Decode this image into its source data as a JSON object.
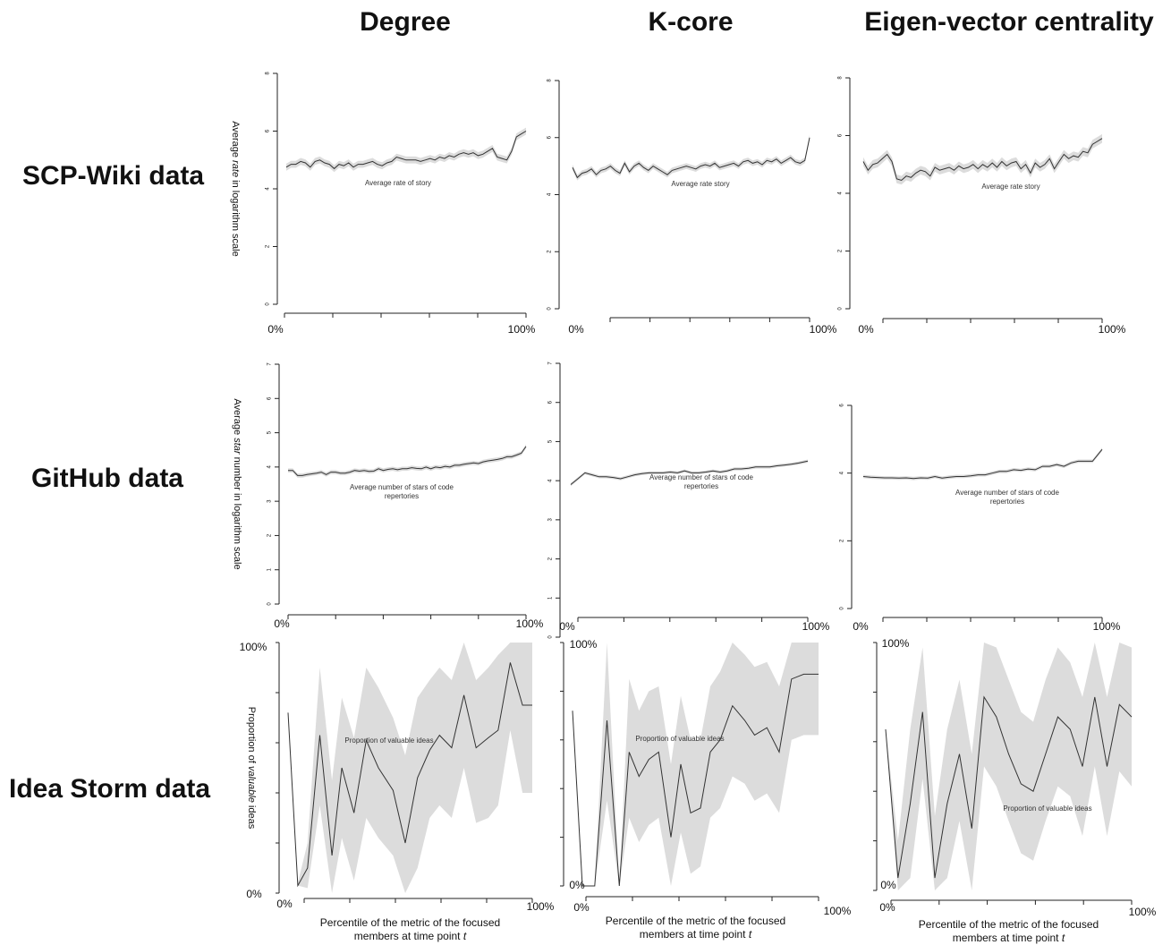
{
  "column_titles": [
    "Degree",
    "K-core",
    "Eigen-vector centrality"
  ],
  "row_titles": [
    "SCP-Wiki data",
    "GitHub data",
    "Idea Storm data"
  ],
  "chart_data": [
    {
      "type": "line",
      "row": 0,
      "col": 0,
      "ylabel": "Average rate in logarithm scale",
      "annotation": "Average rate of story",
      "ylim": [
        0,
        8
      ],
      "yticks": [
        0,
        2,
        4,
        6,
        8
      ],
      "x_start": "0%",
      "x_end": "100%",
      "band": true,
      "band_width": 0.12,
      "x": [
        0,
        2,
        4,
        6,
        8,
        10,
        12,
        14,
        16,
        18,
        20,
        22,
        24,
        26,
        28,
        30,
        32,
        34,
        36,
        38,
        40,
        42,
        44,
        46,
        48,
        50,
        52,
        54,
        56,
        58,
        60,
        62,
        64,
        66,
        68,
        70,
        72,
        74,
        76,
        78,
        80,
        82,
        84,
        86,
        88,
        90,
        92,
        94,
        96,
        98,
        100
      ],
      "values": [
        4.75,
        4.85,
        4.85,
        4.95,
        4.9,
        4.75,
        4.95,
        5.0,
        4.9,
        4.85,
        4.7,
        4.85,
        4.8,
        4.9,
        4.75,
        4.85,
        4.85,
        4.9,
        4.95,
        4.85,
        4.8,
        4.9,
        4.95,
        5.1,
        5.05,
        5.0,
        5.0,
        5.0,
        4.95,
        5.0,
        5.05,
        5.0,
        5.1,
        5.05,
        5.15,
        5.1,
        5.2,
        5.25,
        5.2,
        5.25,
        5.15,
        5.2,
        5.3,
        5.4,
        5.1,
        5.05,
        5.0,
        5.3,
        5.8,
        5.9,
        6.0
      ]
    },
    {
      "type": "line",
      "row": 0,
      "col": 1,
      "ylabel": "",
      "annotation": "Average rate story",
      "ylim": [
        0,
        8
      ],
      "yticks": [
        0,
        2,
        4,
        6,
        8
      ],
      "x_start": "0%",
      "x_end": "100%",
      "band": true,
      "band_width": 0.1,
      "x": [
        0,
        2,
        4,
        6,
        8,
        10,
        12,
        14,
        16,
        18,
        20,
        22,
        24,
        26,
        28,
        30,
        32,
        34,
        36,
        38,
        40,
        42,
        44,
        46,
        48,
        50,
        52,
        54,
        56,
        58,
        60,
        62,
        64,
        66,
        68,
        70,
        72,
        74,
        76,
        78,
        80,
        82,
        84,
        86,
        88,
        90,
        92,
        94,
        96,
        98,
        100
      ],
      "values": [
        4.95,
        4.6,
        4.75,
        4.8,
        4.9,
        4.7,
        4.85,
        4.9,
        5.0,
        4.85,
        4.75,
        5.1,
        4.8,
        5.0,
        5.1,
        4.95,
        4.85,
        5.0,
        4.9,
        4.8,
        4.7,
        4.85,
        4.9,
        4.95,
        5.0,
        4.95,
        4.9,
        5.0,
        5.05,
        5.0,
        5.1,
        4.95,
        5.0,
        5.05,
        5.1,
        5.0,
        5.15,
        5.2,
        5.1,
        5.15,
        5.05,
        5.2,
        5.15,
        5.25,
        5.1,
        5.2,
        5.3,
        5.15,
        5.1,
        5.2,
        6.0
      ]
    },
    {
      "type": "line",
      "row": 0,
      "col": 2,
      "ylabel": "",
      "annotation": "Average rate story",
      "ylim": [
        0,
        8
      ],
      "yticks": [
        0,
        2,
        4,
        6,
        8
      ],
      "x_start": "0%",
      "x_end": "100%",
      "band": true,
      "band_width": 0.15,
      "x": [
        0,
        2,
        4,
        6,
        8,
        10,
        12,
        14,
        16,
        18,
        20,
        22,
        24,
        26,
        28,
        30,
        32,
        34,
        36,
        38,
        40,
        42,
        44,
        46,
        48,
        50,
        52,
        54,
        56,
        58,
        60,
        62,
        64,
        66,
        68,
        70,
        72,
        74,
        76,
        78,
        80,
        82,
        84,
        86,
        88,
        90,
        92,
        94,
        96,
        98,
        100
      ],
      "values": [
        5.1,
        4.8,
        5.0,
        5.05,
        5.2,
        5.35,
        5.1,
        4.5,
        4.45,
        4.6,
        4.55,
        4.7,
        4.8,
        4.75,
        4.6,
        4.9,
        4.8,
        4.85,
        4.9,
        4.8,
        4.95,
        4.85,
        4.9,
        5.0,
        4.85,
        5.0,
        4.9,
        5.05,
        4.9,
        5.1,
        4.95,
        5.05,
        5.1,
        4.85,
        5.0,
        4.7,
        5.05,
        4.9,
        5.0,
        5.2,
        4.85,
        5.1,
        5.35,
        5.2,
        5.3,
        5.25,
        5.45,
        5.4,
        5.7,
        5.8,
        5.9
      ]
    },
    {
      "type": "line",
      "row": 1,
      "col": 0,
      "ylabel": "Average star number in logarithm scale",
      "annotation": "Average number of stars of code repertories",
      "ylim": [
        0,
        7
      ],
      "yticks": [
        0,
        1,
        2,
        3,
        4,
        5,
        6,
        7
      ],
      "x_start": "0%",
      "x_end": "100%",
      "band": true,
      "band_width": 0.06,
      "x": [
        0,
        2,
        4,
        6,
        8,
        10,
        12,
        14,
        16,
        18,
        20,
        22,
        24,
        26,
        28,
        30,
        32,
        34,
        36,
        38,
        40,
        42,
        44,
        46,
        48,
        50,
        52,
        54,
        56,
        58,
        60,
        62,
        64,
        66,
        68,
        70,
        72,
        74,
        76,
        78,
        80,
        82,
        84,
        86,
        88,
        90,
        92,
        94,
        96,
        98,
        100
      ],
      "values": [
        3.9,
        3.9,
        3.75,
        3.75,
        3.78,
        3.8,
        3.82,
        3.85,
        3.78,
        3.85,
        3.85,
        3.82,
        3.82,
        3.85,
        3.9,
        3.88,
        3.9,
        3.87,
        3.88,
        3.95,
        3.9,
        3.93,
        3.95,
        3.92,
        3.95,
        3.95,
        3.98,
        3.96,
        3.95,
        4.0,
        3.95,
        4.0,
        3.98,
        4.02,
        4.0,
        4.05,
        4.05,
        4.08,
        4.1,
        4.12,
        4.1,
        4.15,
        4.18,
        4.2,
        4.22,
        4.25,
        4.3,
        4.3,
        4.35,
        4.4,
        4.6
      ]
    },
    {
      "type": "line",
      "row": 1,
      "col": 1,
      "ylabel": "",
      "annotation": "Average number of stars of code repertories",
      "ylim": [
        0,
        7
      ],
      "yticks": [
        0,
        1,
        2,
        3,
        4,
        5,
        6,
        7
      ],
      "x_start": "0%",
      "x_end": "100%",
      "band": true,
      "band_width": 0.04,
      "x": [
        0,
        3,
        6,
        9,
        12,
        15,
        18,
        21,
        24,
        27,
        30,
        33,
        36,
        39,
        42,
        45,
        48,
        51,
        54,
        57,
        60,
        63,
        66,
        69,
        72,
        75,
        78,
        81,
        84,
        87,
        90,
        93,
        96,
        100
      ],
      "values": [
        3.9,
        4.05,
        4.2,
        4.15,
        4.1,
        4.1,
        4.08,
        4.05,
        4.1,
        4.15,
        4.18,
        4.2,
        4.2,
        4.2,
        4.22,
        4.2,
        4.25,
        4.2,
        4.2,
        4.22,
        4.25,
        4.22,
        4.25,
        4.3,
        4.3,
        4.32,
        4.35,
        4.35,
        4.35,
        4.38,
        4.4,
        4.42,
        4.45,
        4.5
      ]
    },
    {
      "type": "line",
      "row": 1,
      "col": 2,
      "ylabel": "",
      "annotation": "Average number of stars of code repertories",
      "ylim": [
        0,
        6
      ],
      "yticks": [
        0,
        2,
        4,
        6
      ],
      "x_start": "0%",
      "x_end": "100%",
      "band": true,
      "band_width": 0.05,
      "x": [
        0,
        3,
        6,
        9,
        12,
        15,
        18,
        21,
        24,
        27,
        30,
        33,
        36,
        39,
        42,
        45,
        48,
        51,
        54,
        57,
        60,
        63,
        66,
        69,
        72,
        75,
        78,
        81,
        84,
        87,
        90,
        93,
        96,
        100
      ],
      "values": [
        3.9,
        3.88,
        3.87,
        3.86,
        3.86,
        3.85,
        3.86,
        3.84,
        3.86,
        3.85,
        3.9,
        3.85,
        3.88,
        3.9,
        3.9,
        3.92,
        3.95,
        3.95,
        4.0,
        4.05,
        4.05,
        4.1,
        4.08,
        4.12,
        4.1,
        4.2,
        4.2,
        4.25,
        4.2,
        4.3,
        4.35,
        4.35,
        4.35,
        4.7
      ]
    },
    {
      "type": "line",
      "row": 2,
      "col": 0,
      "ylabel": "Proportion of valuable ideas",
      "annotation": "Proportion of valuable ideas",
      "ylim": [
        0,
        1
      ],
      "ytick_labels": [
        "0%",
        "100%"
      ],
      "x_start": "0%",
      "x_end": "100%",
      "xlabel": "Percentile of the metric of the focused members at time point t",
      "x": [
        0,
        4,
        8,
        13,
        18,
        22,
        27,
        32,
        37,
        43,
        48,
        53,
        58,
        62,
        67,
        72,
        77,
        82,
        86,
        91,
        96,
        100
      ],
      "values": [
        0.72,
        0.03,
        0.1,
        0.63,
        0.15,
        0.5,
        0.32,
        0.61,
        0.5,
        0.41,
        0.2,
        0.46,
        0.57,
        0.63,
        0.58,
        0.79,
        0.58,
        0.62,
        0.65,
        0.92,
        0.75,
        0.75
      ],
      "lower": [
        0.72,
        0.03,
        0.02,
        0.35,
        0.0,
        0.22,
        0.05,
        0.3,
        0.22,
        0.15,
        0.0,
        0.1,
        0.3,
        0.35,
        0.3,
        0.5,
        0.28,
        0.3,
        0.35,
        0.65,
        0.4,
        0.4
      ],
      "upper": [
        0.72,
        0.04,
        0.2,
        0.9,
        0.45,
        0.78,
        0.62,
        0.9,
        0.82,
        0.7,
        0.55,
        0.78,
        0.85,
        0.9,
        0.85,
        1.0,
        0.85,
        0.9,
        0.95,
        1.0,
        1.0,
        1.0
      ]
    },
    {
      "type": "line",
      "row": 2,
      "col": 1,
      "ylabel": "",
      "annotation": "Proportion of valuable ideas",
      "ylim": [
        0,
        1
      ],
      "ytick_labels": [
        "0%",
        "100%"
      ],
      "x_start": "0%",
      "x_end": "100%",
      "xlabel": "Percentile of the metric of the focused members at time point t",
      "x": [
        0,
        4,
        9,
        14,
        19,
        23,
        27,
        31,
        35,
        40,
        44,
        48,
        52,
        56,
        60,
        65,
        70,
        74,
        79,
        84,
        89,
        94,
        100
      ],
      "values": [
        0.72,
        0.0,
        0.0,
        0.68,
        0.0,
        0.55,
        0.45,
        0.52,
        0.55,
        0.2,
        0.5,
        0.3,
        0.32,
        0.55,
        0.6,
        0.74,
        0.68,
        0.62,
        0.65,
        0.55,
        0.85,
        0.87,
        0.87
      ],
      "lower": [
        0.72,
        0.0,
        0.0,
        0.35,
        0.0,
        0.28,
        0.18,
        0.25,
        0.28,
        0.0,
        0.22,
        0.05,
        0.08,
        0.28,
        0.32,
        0.45,
        0.42,
        0.35,
        0.38,
        0.3,
        0.6,
        0.62,
        0.62
      ],
      "upper": [
        0.72,
        0.0,
        0.0,
        1.0,
        0.0,
        0.85,
        0.72,
        0.8,
        0.82,
        0.5,
        0.78,
        0.6,
        0.6,
        0.82,
        0.88,
        1.0,
        0.95,
        0.9,
        0.92,
        0.82,
        1.0,
        1.0,
        1.0
      ]
    },
    {
      "type": "line",
      "row": 2,
      "col": 2,
      "ylabel": "",
      "annotation": "Proportion of valuable ideas",
      "ylim": [
        0,
        1
      ],
      "ytick_labels": [
        "0%",
        "100%"
      ],
      "x_start": "0%",
      "x_end": "100%",
      "xlabel": "Percentile of the metric of the focused members at time point t",
      "x": [
        0,
        5,
        10,
        15,
        20,
        25,
        30,
        35,
        40,
        45,
        50,
        55,
        60,
        65,
        70,
        75,
        80,
        85,
        90,
        95,
        100
      ],
      "values": [
        0.65,
        0.05,
        0.35,
        0.72,
        0.05,
        0.35,
        0.55,
        0.25,
        0.78,
        0.7,
        0.55,
        0.43,
        0.4,
        0.55,
        0.7,
        0.65,
        0.5,
        0.78,
        0.5,
        0.75,
        0.7
      ],
      "lower": [
        0.65,
        0.0,
        0.05,
        0.45,
        0.0,
        0.05,
        0.28,
        0.0,
        0.5,
        0.42,
        0.28,
        0.15,
        0.12,
        0.28,
        0.42,
        0.38,
        0.22,
        0.5,
        0.22,
        0.48,
        0.42
      ],
      "upper": [
        0.65,
        0.2,
        0.65,
        0.98,
        0.3,
        0.65,
        0.85,
        0.55,
        1.0,
        0.98,
        0.85,
        0.72,
        0.68,
        0.85,
        0.98,
        0.92,
        0.78,
        1.0,
        0.78,
        1.0,
        0.98
      ]
    }
  ]
}
